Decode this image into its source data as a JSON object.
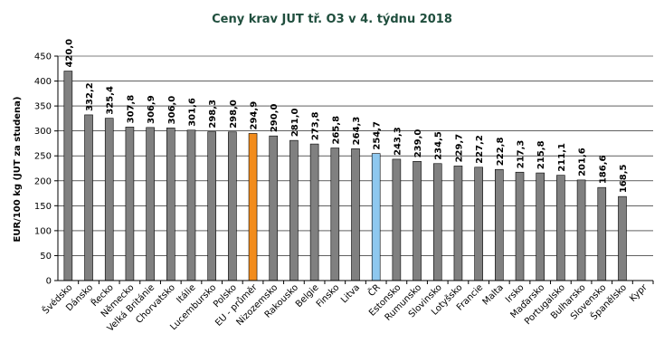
{
  "chart_data": {
    "type": "bar",
    "title": "Ceny krav JUT  tř. O3  v 4. týdnu 2018",
    "xlabel": "",
    "ylabel": "EUR/100 kg (JUT za studena)",
    "ylim": [
      0,
      450
    ],
    "yticks": [
      0,
      50,
      100,
      150,
      200,
      250,
      300,
      350,
      400,
      450
    ],
    "grid": "horizontal",
    "categories": [
      "Švédsko",
      "Dánsko",
      "Řecko",
      "Německo",
      "Velká Británie",
      "Chorvatsko",
      "Itálie",
      "Lucembursko",
      "Polsko",
      "EU - průměr",
      "Nizozemsko",
      "Rakousko",
      "Belgie",
      "Finsko",
      "Litva",
      "ČR",
      "Estonsko",
      "Rumunsko",
      "Slovinsko",
      "Lotyšsko",
      "Francie",
      "Malta",
      "Irsko",
      "Maďarsko",
      "Portugalsko",
      "Bulharsko",
      "Slovensko",
      "Španělsko",
      "Kypr"
    ],
    "values": [
      420.0,
      332.2,
      325.4,
      307.8,
      306.9,
      306.0,
      301.6,
      298.3,
      298.0,
      294.9,
      290.0,
      281.0,
      273.8,
      265.8,
      264.3,
      254.7,
      243.3,
      239.0,
      234.5,
      229.7,
      227.2,
      222.8,
      217.3,
      215.8,
      211.1,
      201.6,
      186.6,
      168.5,
      null
    ],
    "value_labels": [
      "420,0",
      "332,2",
      "325,4",
      "307,8",
      "306,9",
      "306,0",
      "301,6",
      "298,3",
      "298,0",
      "294,9",
      "290,0",
      "281,0",
      "273,8",
      "265,8",
      "264,3",
      "254,7",
      "243,3",
      "239,0",
      "234,5",
      "229,7",
      "227,2",
      "222,8",
      "217,3",
      "215,8",
      "211,1",
      "201,6",
      "186,6",
      "168,5",
      ""
    ],
    "colors": {
      "default": "#808080",
      "EU - průměr": "#f28c1c",
      "ČR": "#8ec8ef"
    }
  }
}
